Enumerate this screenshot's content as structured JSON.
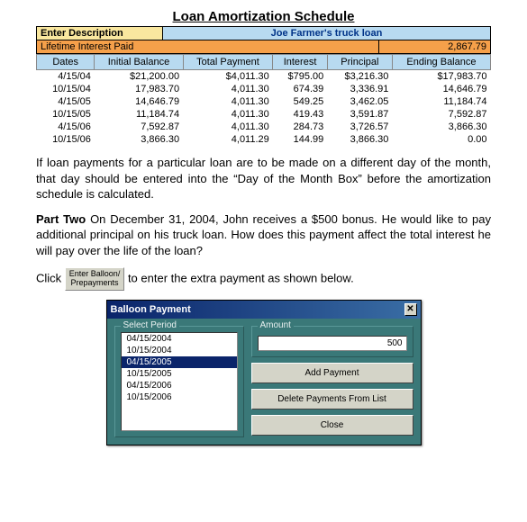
{
  "title": "Loan Amortization Schedule",
  "desc": {
    "label": "Enter Description",
    "value": "Joe Farmer's truck loan"
  },
  "interest": {
    "label": "Lifetime Interest Paid",
    "value": "2,867.79"
  },
  "columns": [
    "Dates",
    "Initial Balance",
    "Total Payment",
    "Interest",
    "Principal",
    "Ending Balance"
  ],
  "rows": [
    [
      "4/15/04",
      "$21,200.00",
      "$4,011.30",
      "$795.00",
      "$3,216.30",
      "$17,983.70"
    ],
    [
      "10/15/04",
      "17,983.70",
      "4,011.30",
      "674.39",
      "3,336.91",
      "14,646.79"
    ],
    [
      "4/15/05",
      "14,646.79",
      "4,011.30",
      "549.25",
      "3,462.05",
      "11,184.74"
    ],
    [
      "10/15/05",
      "11,184.74",
      "4,011.30",
      "419.43",
      "3,591.87",
      "7,592.87"
    ],
    [
      "4/15/06",
      "7,592.87",
      "4,011.30",
      "284.73",
      "3,726.57",
      "3,866.30"
    ],
    [
      "10/15/06",
      "3,866.30",
      "4,011.29",
      "144.99",
      "3,866.30",
      "0.00"
    ]
  ],
  "para1": "If loan payments for a particular loan are to be made on a different day of the month, that day should be entered into the “Day of the Month Box” before the amortization schedule is calculated.",
  "para2_prefix": "Part Two",
  "para2_body": " On December 31, 2004, John receives a $500 bonus. He would like to pay additional principal on his truck loan. How does this payment affect the total interest he will pay over the life of the loan?",
  "click_prefix": "Click ",
  "inline_btn_l1": "Enter Balloon/",
  "inline_btn_l2": "Prepayments",
  "click_suffix": " to enter the extra payment as shown below.",
  "dialog": {
    "title": "Balloon Payment",
    "close": "✕",
    "select_period_label": "Select Period",
    "periods": [
      "04/15/2004",
      "10/15/2004",
      "04/15/2005",
      "10/15/2005",
      "04/15/2006",
      "10/15/2006"
    ],
    "selected_index": 2,
    "amount_label": "Amount",
    "amount_value": "500",
    "add_btn": "Add Payment",
    "delete_btn": "Delete Payments From List",
    "close_btn": "Close"
  }
}
